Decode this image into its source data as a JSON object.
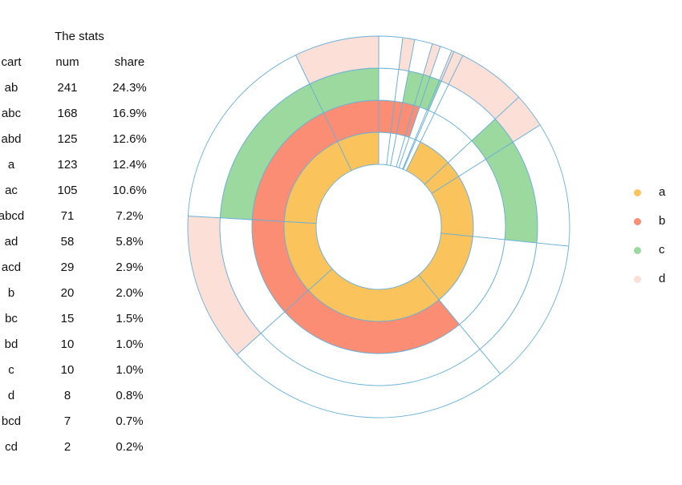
{
  "table": {
    "title": "The stats",
    "headers": [
      "cart",
      "num",
      "share"
    ],
    "rows": [
      [
        "ab",
        "241",
        "24.3%"
      ],
      [
        "abc",
        "168",
        "16.9%"
      ],
      [
        "abd",
        "125",
        "12.6%"
      ],
      [
        "a",
        "123",
        "12.4%"
      ],
      [
        "ac",
        "105",
        "10.6%"
      ],
      [
        "abcd",
        "71",
        "7.2%"
      ],
      [
        "ad",
        "58",
        "5.8%"
      ],
      [
        "acd",
        "29",
        "2.9%"
      ],
      [
        "b",
        "20",
        "2.0%"
      ],
      [
        "bc",
        "15",
        "1.5%"
      ],
      [
        "bd",
        "10",
        "1.0%"
      ],
      [
        "c",
        "10",
        "1.0%"
      ],
      [
        "d",
        "8",
        "0.8%"
      ],
      [
        "bcd",
        "7",
        "0.7%"
      ],
      [
        "cd",
        "2",
        "0.2%"
      ]
    ]
  },
  "legend": [
    {
      "label": "a",
      "color": "#fbc35c"
    },
    {
      "label": "b",
      "color": "#fa8d74"
    },
    {
      "label": "c",
      "color": "#9cd99f"
    },
    {
      "label": "d",
      "color": "#fce0d7"
    }
  ],
  "colors": {
    "outline": "#6ab0d8",
    "empty": "#ffffff"
  },
  "chart_data": {
    "type": "nested-donut",
    "rings": [
      "a",
      "b",
      "c",
      "d"
    ],
    "categories": [
      "b",
      "bd",
      "bc",
      "bcd",
      "c",
      "cd",
      "d",
      "ad",
      "acd",
      "ac",
      "a",
      "ab",
      "abd",
      "abc",
      "abcd"
    ],
    "values": [
      20,
      10,
      15,
      7,
      10,
      2,
      8,
      58,
      29,
      105,
      123,
      241,
      125,
      168,
      71
    ],
    "total": 992,
    "order": "clockwise from top"
  }
}
